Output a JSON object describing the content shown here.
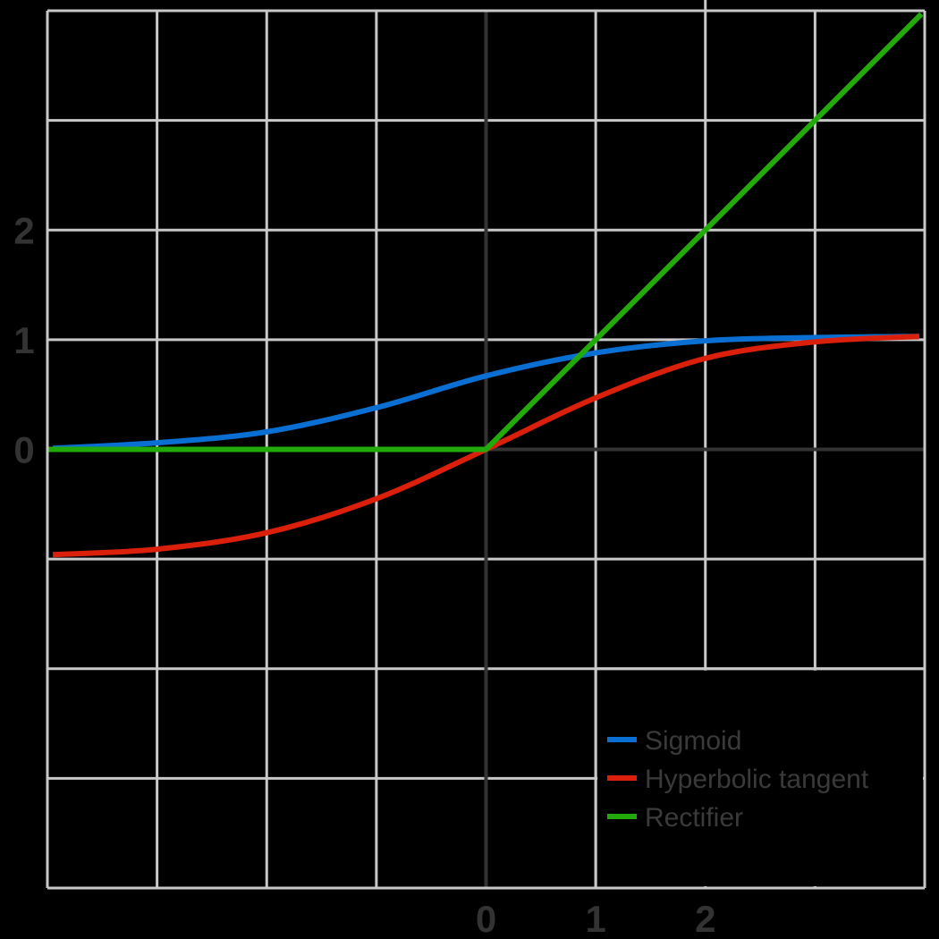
{
  "colors": {
    "background": "#000000",
    "grid": "#c8c8c8",
    "axis": "#333333",
    "tick_label": "#333333",
    "legend_text": "#3a3a3a"
  },
  "chart_data": {
    "type": "line",
    "title": "",
    "xlabel": "",
    "ylabel": "",
    "xlim": [
      -4,
      4
    ],
    "ylim": [
      -4,
      4
    ],
    "grid": true,
    "legend_position": "lower right",
    "x_ticks": [
      {
        "value": 0,
        "label": "0"
      },
      {
        "value": 1,
        "label": "1"
      },
      {
        "value": 2,
        "label": "2"
      }
    ],
    "y_ticks": [
      {
        "value": 2,
        "label": "2"
      },
      {
        "value": 1,
        "label": "1"
      },
      {
        "value": 0,
        "label": "0"
      }
    ],
    "series": [
      {
        "name": "Sigmoid",
        "color": "#0a6fd2",
        "x": [
          -3.95,
          -3,
          -2,
          -1,
          0,
          1,
          2,
          3,
          3.95
        ],
        "y": [
          0.01,
          0.06,
          0.16,
          0.38,
          0.67,
          0.88,
          0.99,
          1.02,
          1.03
        ]
      },
      {
        "name": "Hyperbolic tangent",
        "color": "#da1f0a",
        "x": [
          -3.95,
          -3,
          -2,
          -1,
          0,
          1,
          2,
          3,
          3.95
        ],
        "y": [
          -0.96,
          -0.91,
          -0.76,
          -0.45,
          0.0,
          0.47,
          0.83,
          0.98,
          1.03
        ]
      },
      {
        "name": "Rectifier",
        "color": "#22aa0a",
        "x": [
          -4,
          0,
          3.97
        ],
        "y": [
          0,
          0,
          3.97
        ]
      }
    ]
  },
  "legend": {
    "items": [
      {
        "label": "Sigmoid",
        "color": "#0a6fd2"
      },
      {
        "label": "Hyperbolic tangent",
        "color": "#da1f0a"
      },
      {
        "label": "Rectifier",
        "color": "#22aa0a"
      }
    ]
  }
}
